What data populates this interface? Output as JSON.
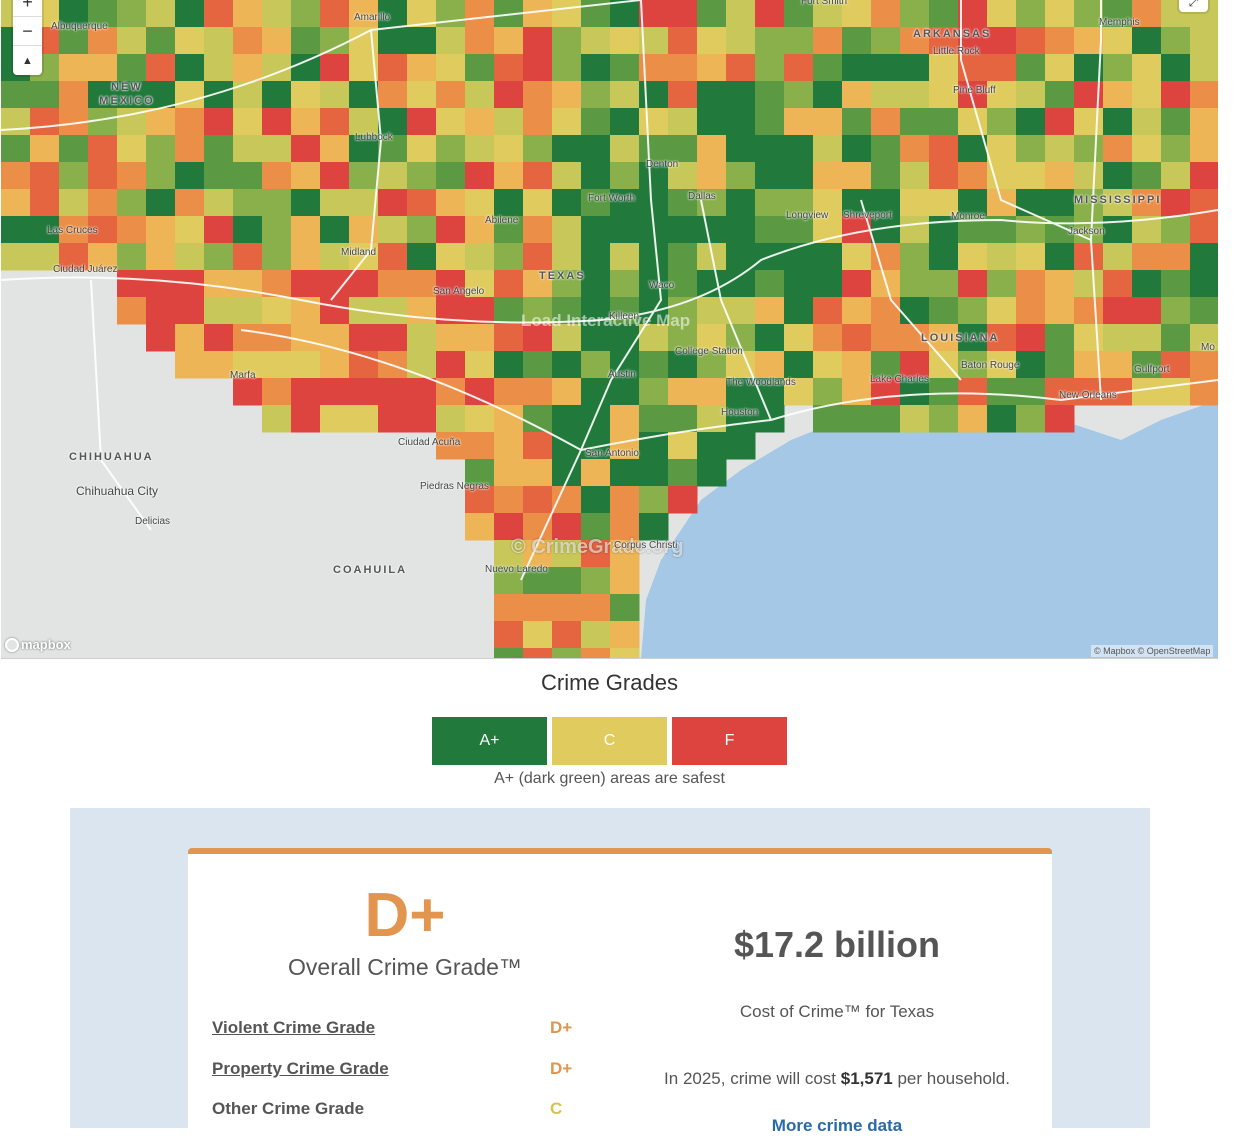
{
  "map": {
    "overlay_text": "Load Interactive Map",
    "watermark": "© CrimeGrade.org",
    "zoom_in": "+",
    "zoom_out": "−",
    "compass": "▲",
    "fullscreen_icon": "⤢",
    "mapbox_logo": "mapbox",
    "attribution": "© Mapbox © OpenStreetMap",
    "states": [
      "NEW MEXICO",
      "TEXAS",
      "ARKANSAS",
      "LOUISIANA",
      "MISSISSIPPI",
      "CHIHUAHUA",
      "COAHUILA"
    ],
    "cities": [
      "Albuquerque",
      "Amarillo",
      "Fort Smith",
      "Memphis",
      "Little Rock",
      "Pine Bluff",
      "Lubbock",
      "Denton",
      "Fort Worth",
      "Dallas",
      "Abilene",
      "Longview",
      "Shreveport",
      "Monroe",
      "Jackson",
      "Las Cruces",
      "Ciudad Juárez",
      "Midland",
      "San Angelo",
      "Waco",
      "Killeen",
      "College Station",
      "Austin",
      "The Woodlands",
      "Houston",
      "Baton Rouge",
      "Lake Charles",
      "Gulfport",
      "New Orleans",
      "Marfa",
      "Ciudad Acuña",
      "San Antonio",
      "Piedras Negras",
      "Chihuahua City",
      "Delicias",
      "Nuevo Laredo",
      "Corpus Christi",
      "Mo"
    ]
  },
  "legend": {
    "title": "Crime Grades",
    "swatches": [
      {
        "label": "A+",
        "color": "#217a3c"
      },
      {
        "label": "C",
        "color": "#e0cc5e"
      },
      {
        "label": "F",
        "color": "#dd4440"
      }
    ],
    "note": "A+ (dark green) areas are safest"
  },
  "grades": {
    "overall_grade": "D+",
    "overall_label": "Overall Crime Grade™",
    "accent_color": "#e1954f",
    "rows": [
      {
        "name": "Violent Crime Grade",
        "grade": "D+",
        "color": "#e1954f"
      },
      {
        "name": "Property Crime Grade",
        "grade": "D+",
        "color": "#e1954f"
      },
      {
        "name": "Other Crime Grade",
        "grade": "C",
        "color": "#d8c34a"
      }
    ],
    "cost_amount": "$17.2 billion",
    "cost_label": "Cost of Crime™ for Texas",
    "household_prefix": "In 2025, crime will cost",
    "household_amount": "$1,571",
    "household_suffix": "per household.",
    "more_link": "More crime data"
  }
}
